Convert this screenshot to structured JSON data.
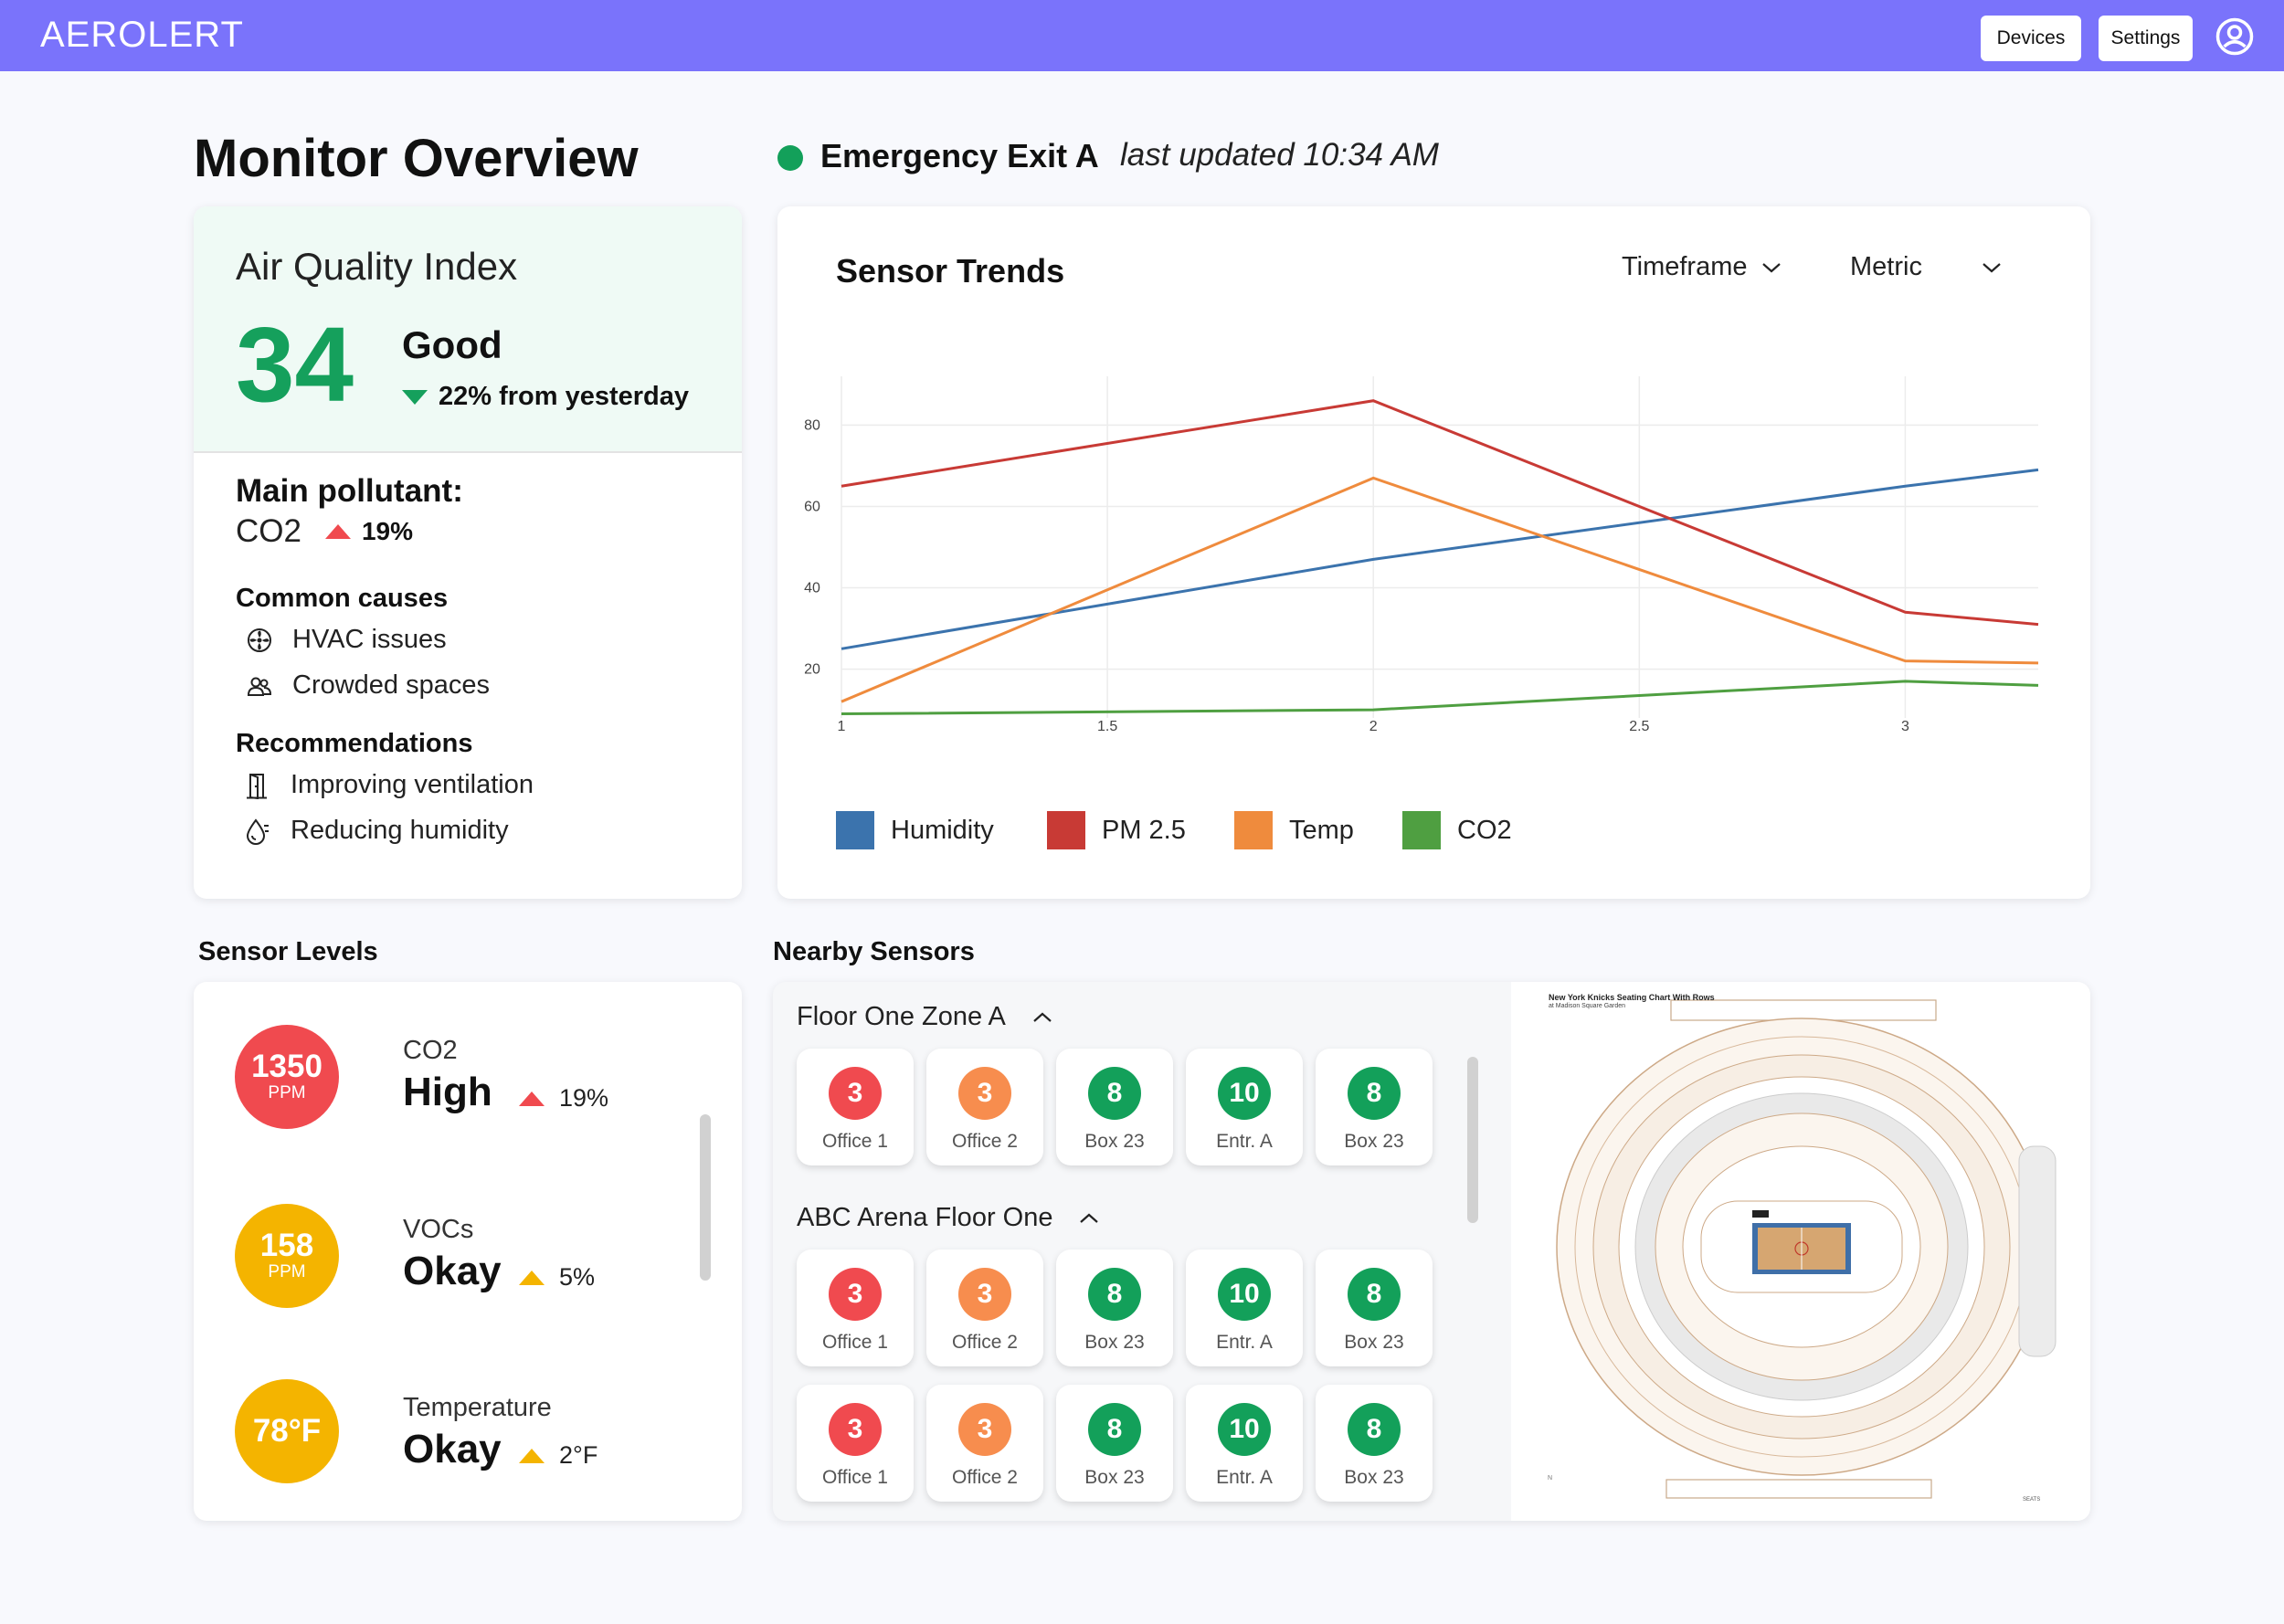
{
  "app": {
    "brand": "AEROLERT",
    "nav": {
      "devices": "Devices",
      "settings": "Settings"
    },
    "profile_icon": "user-circle-icon",
    "accent": "#7a73fb"
  },
  "header": {
    "title": "Monitor Overview",
    "location": "Emergency Exit A",
    "status_color": "#13a05a",
    "updated": "last updated 10:34 AM"
  },
  "aqi": {
    "title": "Air Quality Index",
    "value": "34",
    "label": "Good",
    "change": "22% from yesterday",
    "change_direction": "down",
    "main_pollutant_label": "Main pollutant:",
    "main_pollutant": "CO2",
    "pollutant_change": "19%",
    "pollutant_change_direction": "up",
    "causes_title": "Common causes",
    "causes": [
      {
        "icon": "fan-icon",
        "text": "HVAC issues"
      },
      {
        "icon": "people-icon",
        "text": "Crowded spaces"
      }
    ],
    "recommendations_title": "Recommendations",
    "recommendations": [
      {
        "icon": "door-icon",
        "text": "Improving ventilation"
      },
      {
        "icon": "humidity-drop-icon",
        "text": "Reducing humidity"
      }
    ]
  },
  "trends": {
    "title": "Sensor Trends",
    "timeframe": "Timeframe",
    "metric": "Metric"
  },
  "chart_data": {
    "type": "line",
    "title": "",
    "xlabel": "",
    "ylabel": "",
    "x": [
      1,
      2,
      3,
      3.25
    ],
    "x_ticks": [
      "1",
      "1.5",
      "2",
      "2.5",
      "3"
    ],
    "y_ticks": [
      "20",
      "40",
      "60",
      "80"
    ],
    "xlim": [
      1,
      3.25
    ],
    "ylim": [
      8,
      92
    ],
    "grid": true,
    "legend": "bottom",
    "series": [
      {
        "name": "Humidity",
        "color": "#3b73ad",
        "values": [
          25,
          47,
          65,
          69
        ]
      },
      {
        "name": "PM 2.5",
        "color": "#c83a35",
        "values": [
          65,
          86,
          34,
          31
        ]
      },
      {
        "name": "Temp",
        "color": "#ef8b3d",
        "values": [
          12,
          67,
          22,
          21.5
        ]
      },
      {
        "name": "CO2",
        "color": "#4f9f41",
        "values": [
          9,
          10,
          17,
          16
        ]
      }
    ]
  },
  "sensor_levels": {
    "title": "Sensor Levels",
    "items": [
      {
        "value": "1350",
        "unit": "PPM",
        "name": "CO2",
        "state": "High",
        "change": "19%",
        "color": "#f04a4f"
      },
      {
        "value": "158",
        "unit": "PPM",
        "name": "VOCs",
        "state": "Okay",
        "change": "5%",
        "color": "#f4b400"
      },
      {
        "value": "78°F",
        "unit": "",
        "name": "Temperature",
        "state": "Okay",
        "change": "2°F",
        "color": "#f4b400"
      }
    ]
  },
  "nearby": {
    "title": "Nearby Sensors",
    "zones": [
      {
        "name": "Floor One Zone A",
        "tiles": [
          {
            "value": "3",
            "name": "Office 1",
            "color": "#f04a4f"
          },
          {
            "value": "3",
            "name": "Office 2",
            "color": "#f78d4e"
          },
          {
            "value": "8",
            "name": "Box 23",
            "color": "#13a05a"
          },
          {
            "value": "10",
            "name": "Entr. A",
            "color": "#13a05a"
          },
          {
            "value": "8",
            "name": "Box 23",
            "color": "#13a05a"
          }
        ]
      },
      {
        "name": "ABC Arena Floor One",
        "tiles": [
          {
            "value": "3",
            "name": "Office 1",
            "color": "#f04a4f"
          },
          {
            "value": "3",
            "name": "Office 2",
            "color": "#f78d4e"
          },
          {
            "value": "8",
            "name": "Box 23",
            "color": "#13a05a"
          },
          {
            "value": "10",
            "name": "Entr. A",
            "color": "#13a05a"
          },
          {
            "value": "8",
            "name": "Box 23",
            "color": "#13a05a"
          },
          {
            "value": "3",
            "name": "Office 1",
            "color": "#f04a4f"
          },
          {
            "value": "3",
            "name": "Office 2",
            "color": "#f78d4e"
          },
          {
            "value": "8",
            "name": "Box 23",
            "color": "#13a05a"
          },
          {
            "value": "10",
            "name": "Entr. A",
            "color": "#13a05a"
          },
          {
            "value": "8",
            "name": "Box 23",
            "color": "#13a05a"
          }
        ]
      }
    ],
    "map": {
      "title": "New York Knicks Seating Chart With Rows",
      "subtitle": "at Madison Square Garden"
    }
  }
}
